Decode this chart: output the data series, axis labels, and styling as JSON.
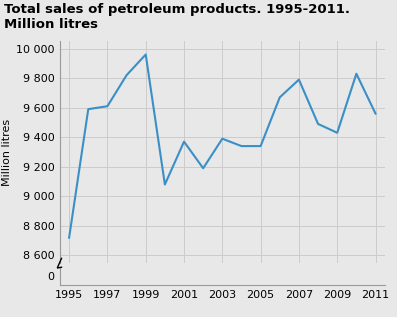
{
  "title": "Total sales of petroleum products. 1995-2011. Million litres",
  "ylabel": "Million litres",
  "years": [
    1995,
    1996,
    1997,
    1998,
    1999,
    2000,
    2001,
    2002,
    2003,
    2004,
    2005,
    2006,
    2007,
    2008,
    2009,
    2010,
    2011
  ],
  "values": [
    8720,
    9590,
    9610,
    9820,
    9960,
    9080,
    9370,
    9190,
    9390,
    9340,
    9340,
    9670,
    9790,
    9490,
    9430,
    9830,
    9560
  ],
  "line_color": "#3a8fc7",
  "line_width": 1.5,
  "ylim_top_bottom": 8550,
  "ylim_top_top": 10050,
  "ylim_bot_bottom": -200,
  "ylim_bot_top": 200,
  "yticks_top": [
    8600,
    8800,
    9000,
    9200,
    9400,
    9600,
    9800,
    10000
  ],
  "yticks_bot": [
    0
  ],
  "xticks": [
    1995,
    1997,
    1999,
    2001,
    2003,
    2005,
    2007,
    2009,
    2011
  ],
  "grid_color": "#cccccc",
  "bg_color": "#e8e8e8",
  "title_fontsize": 9.5,
  "axis_label_fontsize": 8,
  "tick_fontsize": 8
}
